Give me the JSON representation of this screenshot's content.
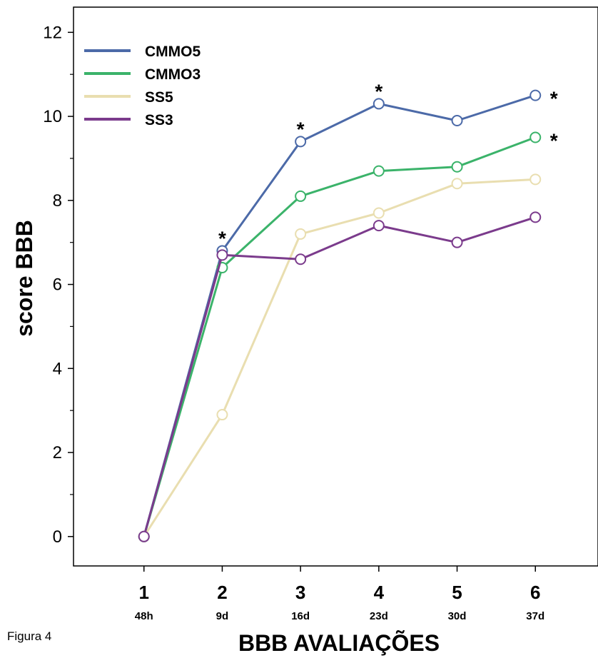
{
  "figure_label": "Figura 4",
  "chart_data": {
    "type": "line",
    "xlabel": "BBB AVALIAÇÕES",
    "ylabel": "score BBB",
    "x": [
      1,
      2,
      3,
      4,
      5,
      6
    ],
    "x_tick_labels": [
      "1",
      "2",
      "3",
      "4",
      "5",
      "6"
    ],
    "x_sublabels": [
      "48h",
      "9d",
      "16d",
      "23d",
      "30d",
      "37d"
    ],
    "xlim": [
      0.1,
      6.8
    ],
    "ylim": [
      -0.7,
      12.6
    ],
    "y_ticks": [
      0,
      2,
      4,
      6,
      8,
      10,
      12
    ],
    "y_tick_labels": [
      "0",
      "2",
      "4",
      "6",
      "8",
      "10",
      "12"
    ],
    "grid": false,
    "legend_position": "top-left",
    "series": [
      {
        "name": "CMMO5",
        "color": "#4c6aa8",
        "values": [
          0,
          6.8,
          9.4,
          10.3,
          9.9,
          10.5
        ]
      },
      {
        "name": "CMMO3",
        "color": "#3bb36a",
        "values": [
          0,
          6.4,
          8.1,
          8.7,
          8.8,
          9.5
        ]
      },
      {
        "name": "SS5",
        "color": "#e9deb0",
        "values": [
          0,
          2.9,
          7.2,
          7.7,
          8.4,
          8.5
        ]
      },
      {
        "name": "SS3",
        "color": "#7b3b8c",
        "values": [
          0,
          6.7,
          6.6,
          7.4,
          7.0,
          7.6
        ]
      }
    ],
    "annotations": [
      {
        "text": "*",
        "x": 2,
        "y": 6.8
      },
      {
        "text": "*",
        "x": 3,
        "y": 9.4
      },
      {
        "text": "*",
        "x": 4,
        "y": 10.3
      },
      {
        "text": "*",
        "x": 6,
        "y": 10.5
      },
      {
        "text": "*",
        "x": 6,
        "y": 9.5
      }
    ]
  }
}
